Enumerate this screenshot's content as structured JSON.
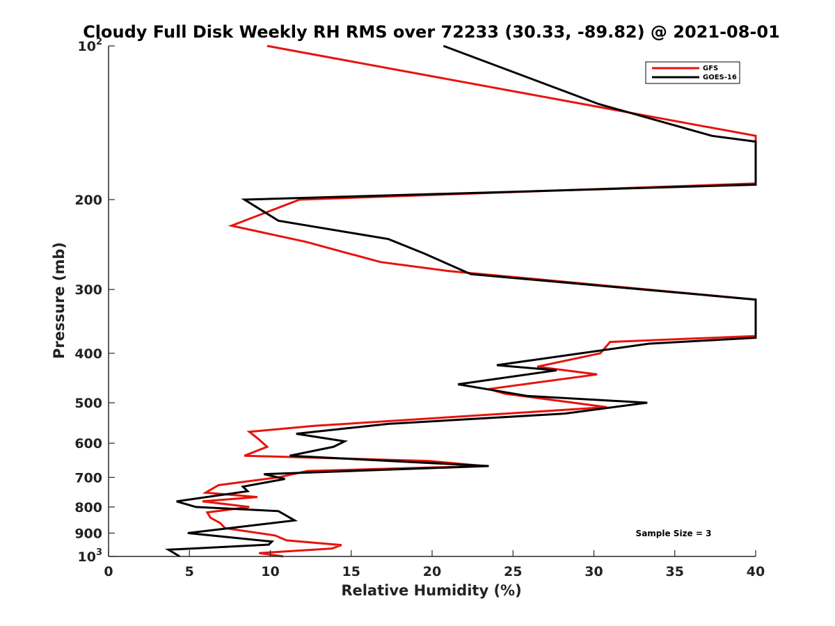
{
  "chart_data": {
    "type": "line",
    "title": "Cloudy Full Disk Weekly RH RMS over 72233 (30.33, -89.82) @ 2021-08-01",
    "xlabel": "Relative Humidity (%)",
    "ylabel": "Pressure (mb)",
    "xlim": [
      0,
      40
    ],
    "ylim": [
      100,
      1000
    ],
    "yscale": "log",
    "yreversed": true,
    "xticks": [
      0,
      5,
      10,
      15,
      20,
      25,
      30,
      35,
      40
    ],
    "yticks": [
      {
        "value": 100,
        "base": "10",
        "exp": "2"
      },
      {
        "value": 200,
        "label": "200"
      },
      {
        "value": 300,
        "label": "300"
      },
      {
        "value": 400,
        "label": "400"
      },
      {
        "value": 500,
        "label": "500"
      },
      {
        "value": 600,
        "label": "600"
      },
      {
        "value": 700,
        "label": "700"
      },
      {
        "value": 800,
        "label": "800"
      },
      {
        "value": 900,
        "label": "900"
      },
      {
        "value": 1000,
        "base": "10",
        "exp": "3"
      }
    ],
    "legend": {
      "position": "top-right"
    },
    "series": [
      {
        "name": "GFS",
        "color": "#e8120c",
        "points": [
          [
            9.8,
            100
          ],
          [
            40,
            150
          ],
          [
            40,
            186
          ],
          [
            11.8,
            200
          ],
          [
            7.6,
            225
          ],
          [
            12.2,
            242
          ],
          [
            16.8,
            265
          ],
          [
            21,
            276
          ],
          [
            40,
            314
          ],
          [
            40,
            370
          ],
          [
            31,
            380
          ],
          [
            30.4,
            400
          ],
          [
            26.5,
            425
          ],
          [
            30.2,
            440
          ],
          [
            23.5,
            470
          ],
          [
            24.5,
            480
          ],
          [
            30.8,
            510
          ],
          [
            12.7,
            555
          ],
          [
            8.7,
            570
          ],
          [
            9.3,
            590
          ],
          [
            9.8,
            610
          ],
          [
            8.4,
            635
          ],
          [
            19.8,
            650
          ],
          [
            23.2,
            665
          ],
          [
            12.3,
            680
          ],
          [
            10.5,
            700
          ],
          [
            6.8,
            725
          ],
          [
            6.0,
            750
          ],
          [
            9.2,
            765
          ],
          [
            5.8,
            780
          ],
          [
            8.7,
            800
          ],
          [
            6.1,
            820
          ],
          [
            6.3,
            840
          ],
          [
            6.9,
            860
          ],
          [
            7.2,
            880
          ],
          [
            10.3,
            910
          ],
          [
            11.0,
            930
          ],
          [
            14.4,
            950
          ],
          [
            13.8,
            965
          ],
          [
            9.3,
            985
          ],
          [
            10.8,
            1000
          ]
        ]
      },
      {
        "name": "GOES-16",
        "color": "#000000",
        "points": [
          [
            20.7,
            100
          ],
          [
            30.3,
            130
          ],
          [
            37.3,
            150
          ],
          [
            40,
            154
          ],
          [
            40,
            187
          ],
          [
            8.4,
            200
          ],
          [
            10.5,
            220
          ],
          [
            17.3,
            239
          ],
          [
            19.5,
            255
          ],
          [
            22.4,
            280
          ],
          [
            40,
            314
          ],
          [
            40,
            373
          ],
          [
            33.4,
            383
          ],
          [
            24,
            422
          ],
          [
            27.7,
            432
          ],
          [
            21.6,
            460
          ],
          [
            25.9,
            485
          ],
          [
            33.3,
            500
          ],
          [
            28.2,
            525
          ],
          [
            17.3,
            550
          ],
          [
            11.6,
            575
          ],
          [
            14.6,
            595
          ],
          [
            13.9,
            610
          ],
          [
            11.2,
            635
          ],
          [
            23.5,
            665
          ],
          [
            9.6,
            690
          ],
          [
            10.9,
            705
          ],
          [
            8.3,
            730
          ],
          [
            8.6,
            745
          ],
          [
            4.2,
            780
          ],
          [
            5.4,
            800
          ],
          [
            10.5,
            815
          ],
          [
            11.5,
            850
          ],
          [
            4.9,
            900
          ],
          [
            10.1,
            935
          ],
          [
            9.9,
            948
          ],
          [
            3.7,
            970
          ],
          [
            4.4,
            1000
          ]
        ]
      }
    ],
    "annotations": [
      "Sample Size = 3"
    ]
  }
}
